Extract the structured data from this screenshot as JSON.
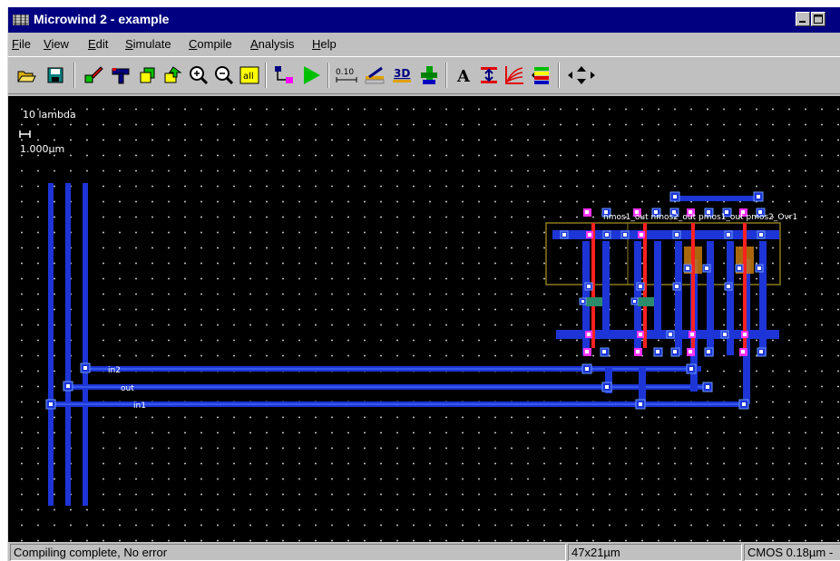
{
  "window": {
    "title": "Microwind 2 - example",
    "controls": [
      "minimize",
      "maximize"
    ]
  },
  "menu": {
    "items": [
      {
        "label": "File",
        "mnemonic": "F"
      },
      {
        "label": "View",
        "mnemonic": "V"
      },
      {
        "label": "Edit",
        "mnemonic": "E"
      },
      {
        "label": "Simulate",
        "mnemonic": "S"
      },
      {
        "label": "Compile",
        "mnemonic": "C"
      },
      {
        "label": "Analysis",
        "mnemonic": "A"
      },
      {
        "label": "Help",
        "mnemonic": "H"
      }
    ]
  },
  "toolbar": {
    "buttons": [
      {
        "name": "open-folder-icon"
      },
      {
        "name": "save-disk-icon"
      },
      {
        "name": "draw-box-icon"
      },
      {
        "name": "delete-gun-icon"
      },
      {
        "name": "copy-icon"
      },
      {
        "name": "move-icon"
      },
      {
        "name": "zoom-in-icon"
      },
      {
        "name": "zoom-out-icon"
      },
      {
        "name": "view-all-icon"
      },
      {
        "name": "connect-icon"
      },
      {
        "name": "run-simulation-icon"
      },
      {
        "name": "measure-distance-icon"
      },
      {
        "name": "vertical-cut-icon"
      },
      {
        "name": "3d-view-icon"
      },
      {
        "name": "compile-arc-icon"
      },
      {
        "name": "add-text-icon"
      },
      {
        "name": "design-rule-icon"
      },
      {
        "name": "mos-curves-icon"
      },
      {
        "name": "palette-icon"
      },
      {
        "name": "navigate-arrows-icon"
      }
    ],
    "labels": {
      "distance": "0.10",
      "three_d": "3D",
      "all": "all",
      "text_tool": "A"
    }
  },
  "canvas": {
    "scale": {
      "lambda_label": "10 lambda",
      "micron_label": "1.000µm"
    },
    "node_labels": {
      "in2": "in2",
      "out": "out",
      "in1": "in1",
      "cells": "nmos1_out nmos2_out pmos1_out pmos2_Ovr1"
    },
    "colors": {
      "background": "#000000",
      "metal1": "#1d35d6",
      "metal_highlight": "#4d7bff",
      "poly": "#ff2020",
      "contact": "#ff33ff",
      "diffusion_outline": "#8c7a1c",
      "well": "#c77a10",
      "grid": "#b8b8b8"
    }
  },
  "status": {
    "message": "Compiling complete, No error",
    "size": "47x21µm",
    "technology": "CMOS 0.18µm -"
  }
}
